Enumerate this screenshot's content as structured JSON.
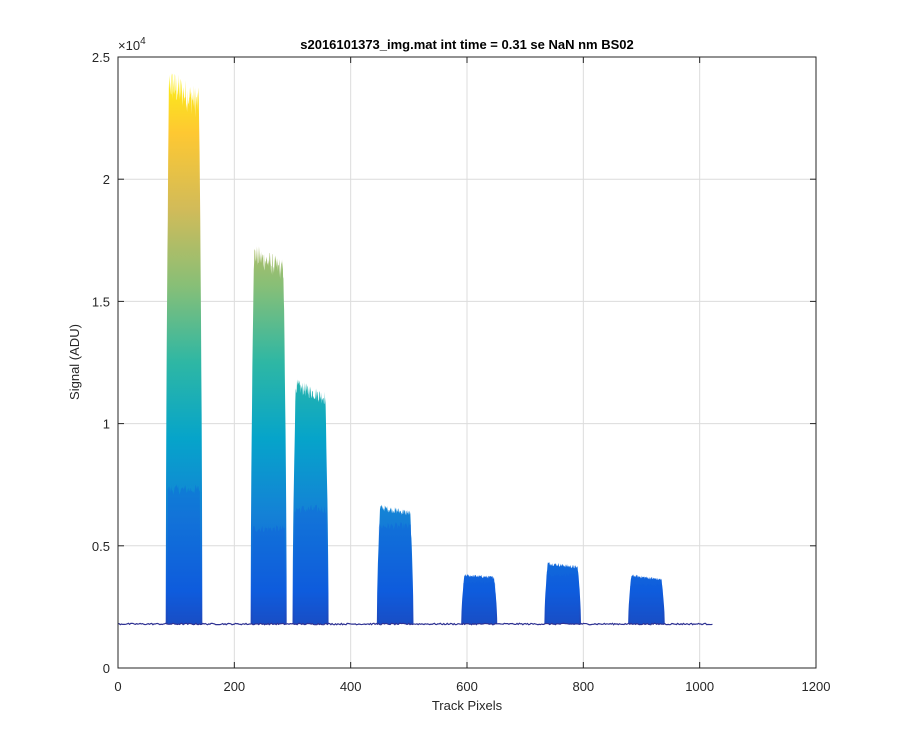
{
  "chart_data": {
    "type": "area",
    "title": "s2016101373_img.mat int time = 0.31 se  NaN nm BS02",
    "xlabel": "Track Pixels",
    "ylabel": "Signal (ADU)",
    "y_exponent_label": "×10",
    "y_exponent_power": "4",
    "xlim": [
      0,
      1200
    ],
    "ylim": [
      0,
      25000
    ],
    "xticks": [
      0,
      200,
      400,
      600,
      800,
      1000,
      1200
    ],
    "xtick_labels": [
      "0",
      "200",
      "400",
      "600",
      "800",
      "1000",
      "1200"
    ],
    "yticks": [
      0,
      5000,
      10000,
      15000,
      20000,
      25000
    ],
    "ytick_labels": [
      "0",
      "0.5",
      "1",
      "1.5",
      "2",
      "2.5"
    ],
    "grid": true,
    "colormap": "parula",
    "baseline_level": 1800,
    "x_extent": [
      0,
      1023
    ],
    "peaks": [
      {
        "x_start": 82,
        "x_end": 145,
        "peak_max": 24000,
        "plateau": 23000,
        "lower_envelope": 7300
      },
      {
        "x_start": 228,
        "x_end": 290,
        "peak_max": 17000,
        "plateau": 16200,
        "lower_envelope": 5700
      },
      {
        "x_start": 300,
        "x_end": 362,
        "peak_max": 11600,
        "plateau": 11000,
        "lower_envelope": 6500
      },
      {
        "x_start": 445,
        "x_end": 508,
        "peak_max": 6600,
        "plateau": 6300,
        "lower_envelope": 5800
      },
      {
        "x_start": 590,
        "x_end": 652,
        "peak_max": 3800,
        "plateau": 3700,
        "lower_envelope": 3500
      },
      {
        "x_start": 733,
        "x_end": 796,
        "peak_max": 4300,
        "plateau": 4100,
        "lower_envelope": 3800
      },
      {
        "x_start": 877,
        "x_end": 940,
        "peak_max": 3800,
        "plateau": 3600,
        "lower_envelope": 3400
      }
    ],
    "colors": {
      "parula": [
        "#352a87",
        "#0f5cdd",
        "#1481d6",
        "#06a4ca",
        "#2eb7a4",
        "#87bf77",
        "#d1bb59",
        "#fec832",
        "#f9fb0e"
      ],
      "baseline": "#2e3192"
    }
  }
}
